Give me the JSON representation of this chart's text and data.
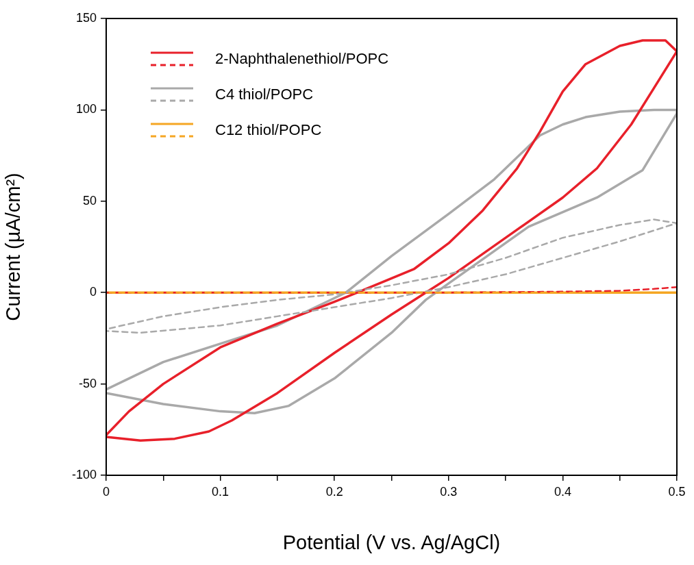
{
  "chart_data": {
    "type": "line",
    "xlabel": "Potential (V vs. Ag/AgCl)",
    "ylabel": "Current (µA/cm²)",
    "xlim": [
      0,
      0.5
    ],
    "xticks": [
      0,
      {
        "value": 0.05,
        "label": null
      },
      0.1,
      {
        "value": 0.15,
        "label": null
      },
      0.2,
      {
        "value": 0.25,
        "label": null
      },
      0.3,
      {
        "value": 0.35,
        "label": null
      },
      0.4,
      {
        "value": 0.45,
        "label": null
      },
      0.5
    ],
    "ylim": [
      -100,
      150
    ],
    "yticks": [
      -100,
      -50,
      0,
      50,
      100,
      150
    ],
    "grid": false,
    "legend": "top left",
    "marker": "none",
    "series": [
      {
        "name": "2-Naphthalenethiol/POPC",
        "color": "#e8202a",
        "line_style": "solid",
        "x": [
          0,
          0.03,
          0.06,
          0.09,
          0.11,
          0.15,
          0.2,
          0.25,
          0.28,
          0.3,
          0.35,
          0.4,
          0.43,
          0.46,
          0.48,
          0.5,
          0.49,
          0.47,
          0.45,
          0.42,
          0.4,
          0.38,
          0.36,
          0.33,
          0.3,
          0.27,
          0.22,
          0.2,
          0.15,
          0.1,
          0.05,
          0.02,
          0
        ],
        "values": [
          -79,
          -81,
          -80,
          -76,
          -70,
          -55,
          -33,
          -12,
          0,
          8,
          30,
          52,
          68,
          92,
          112,
          132,
          138,
          138,
          135,
          125,
          110,
          88,
          68,
          45,
          27,
          13,
          0,
          -5,
          -17,
          -30,
          -50,
          -65,
          -78
        ]
      },
      {
        "color": "#e8202a",
        "line_style": "dashed",
        "x": [
          0,
          0.1,
          0.2,
          0.3,
          0.4,
          0.45,
          0.48,
          0.5
        ],
        "values": [
          0,
          0,
          0,
          0,
          0.5,
          1,
          2,
          3
        ]
      },
      {
        "name": "C4 thiol/POPC",
        "color": "#a9a9a9",
        "line_style": "solid",
        "x": [
          0,
          0.05,
          0.1,
          0.13,
          0.16,
          0.2,
          0.25,
          0.28,
          0.3,
          0.37,
          0.43,
          0.47,
          0.5,
          0.5,
          0.48,
          0.45,
          0.42,
          0.4,
          0.38,
          0.34,
          0.3,
          0.25,
          0.21,
          0.2,
          0.15,
          0.1,
          0.05,
          0.02,
          0
        ],
        "values": [
          -55,
          -61,
          -65,
          -66,
          -62,
          -47,
          -22,
          -4,
          5,
          36,
          52,
          67,
          98,
          100,
          100,
          99,
          96,
          92,
          86,
          62,
          43,
          20,
          0,
          -3,
          -18,
          -28,
          -38,
          -47,
          -53
        ]
      },
      {
        "color": "#a9a9a9",
        "line_style": "dashed",
        "x": [
          0,
          0.03,
          0.1,
          0.15,
          0.2,
          0.25,
          0.3,
          0.35,
          0.4,
          0.45,
          0.5,
          0.48,
          0.45,
          0.4,
          0.35,
          0.3,
          0.25,
          0.2,
          0.15,
          0.1,
          0.05,
          0
        ],
        "values": [
          -21,
          -22,
          -18,
          -13,
          -8,
          -3,
          3,
          10,
          19,
          28,
          38,
          40,
          37,
          30,
          19,
          10,
          4,
          -1,
          -4,
          -8,
          -13,
          -20
        ]
      },
      {
        "name": "C12 thiol/POPC",
        "color": "#f5a623",
        "line_style": "solid",
        "x": [
          0,
          0.5
        ],
        "values": [
          0,
          0
        ]
      },
      {
        "color": "#f5a623",
        "line_style": "dashed",
        "x": [
          0,
          0.5
        ],
        "values": [
          0,
          0
        ]
      }
    ]
  }
}
